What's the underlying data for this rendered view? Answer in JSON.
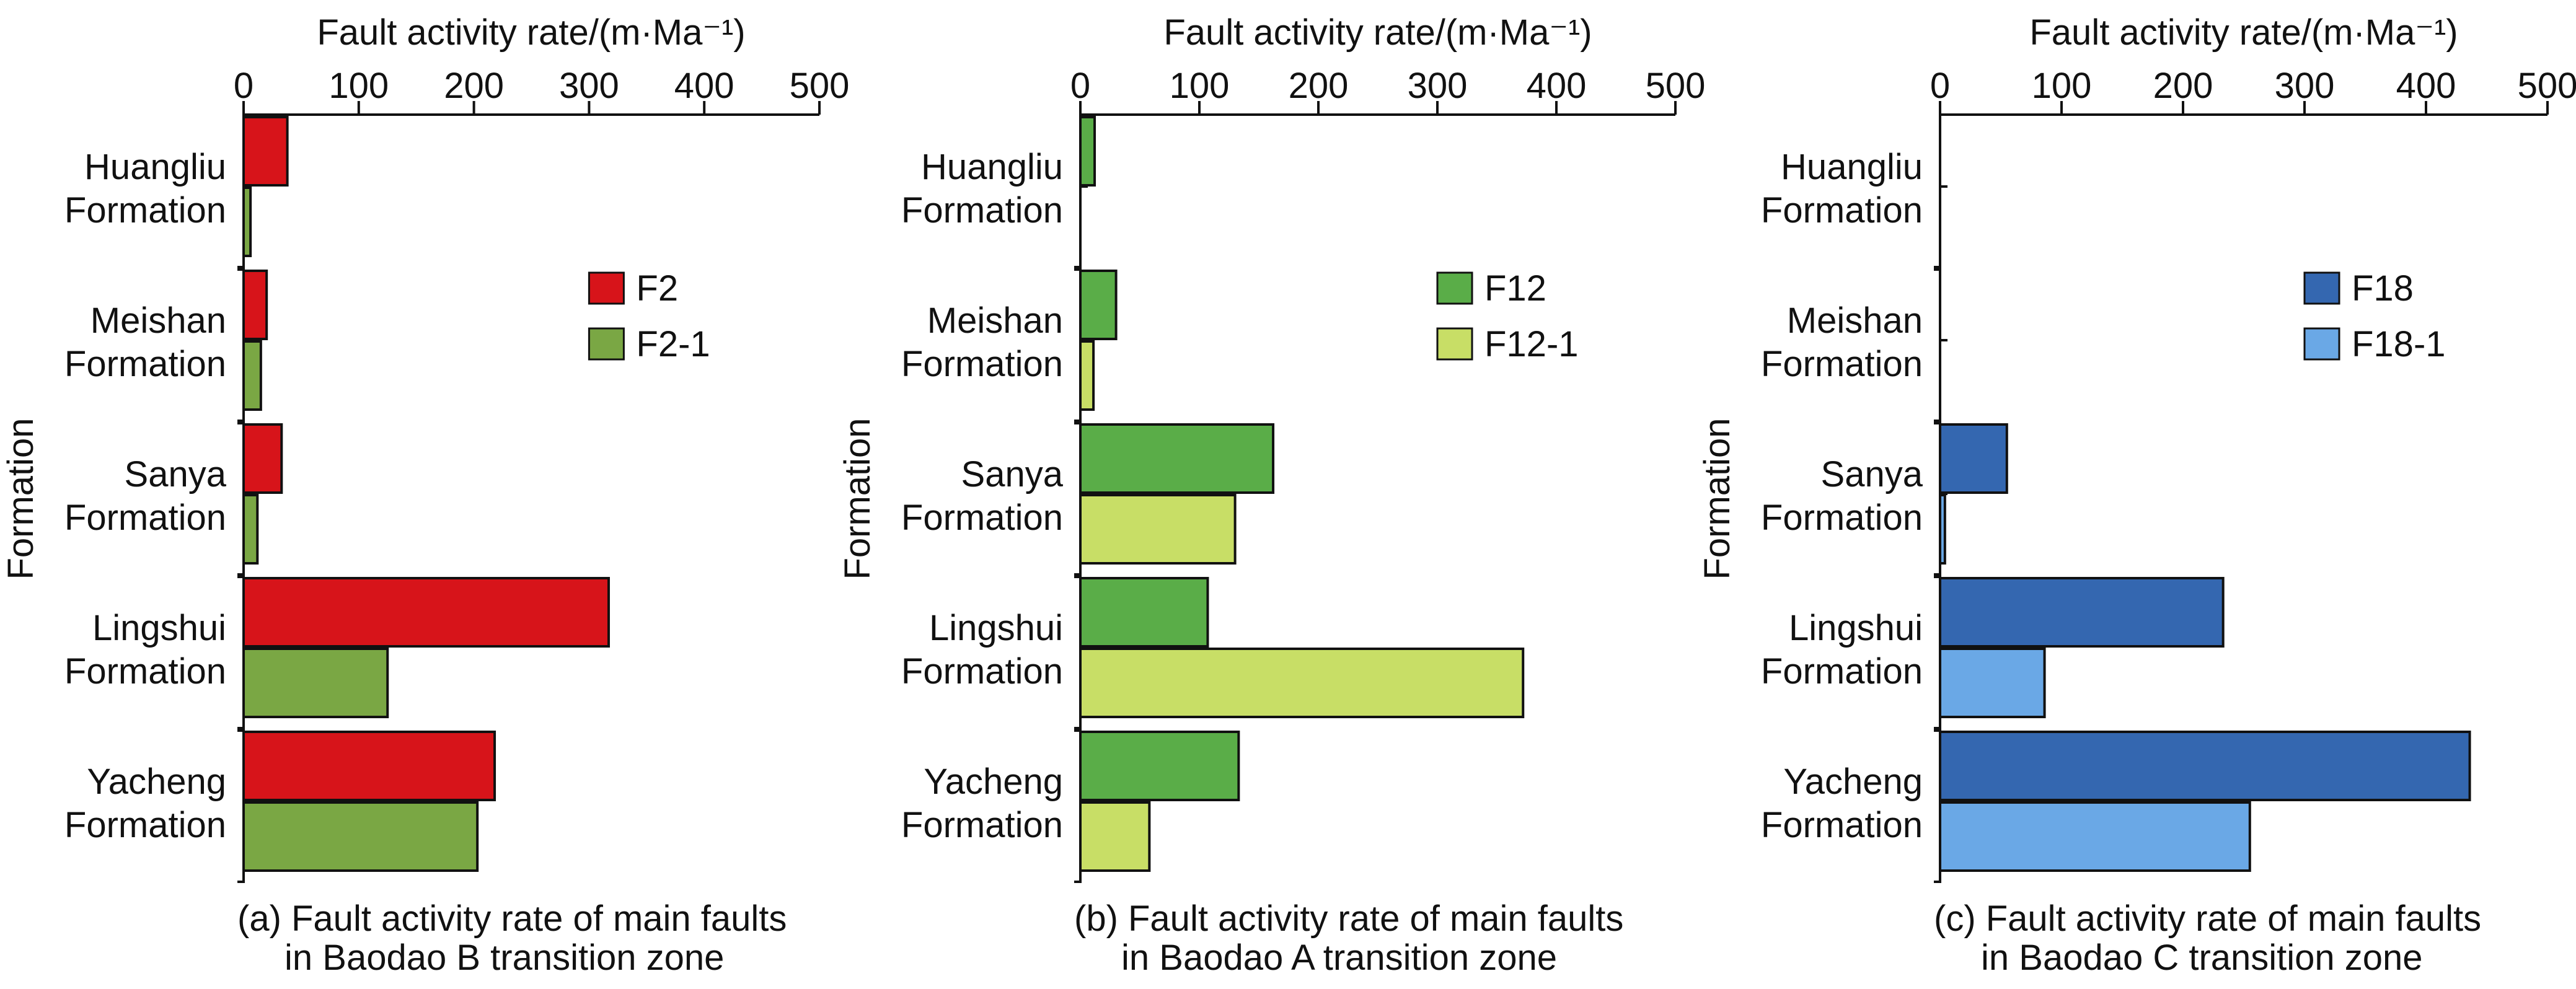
{
  "chart_data": [
    {
      "type": "bar",
      "orientation": "horizontal",
      "title": "",
      "xlabel": "Fault activity rate/(m·Ma⁻¹)",
      "ylabel": "Formation",
      "xlim": [
        0,
        500
      ],
      "xticks": [
        0,
        100,
        200,
        300,
        400,
        500
      ],
      "x_axis_position": "top",
      "categories": [
        [
          "Huangliu",
          "Formation"
        ],
        [
          "Meishan",
          "Formation"
        ],
        [
          "Sanya",
          "Formation"
        ],
        [
          "Lingshui",
          "Formation"
        ],
        [
          "Yacheng",
          "Formation"
        ]
      ],
      "series": [
        {
          "name": "F2",
          "color": "#d7141a",
          "values": [
            38,
            20,
            33,
            317,
            218
          ]
        },
        {
          "name": "F2-1",
          "color": "#7aa744",
          "values": [
            6,
            15,
            12,
            125,
            203
          ]
        }
      ],
      "legend_position": "right",
      "caption": [
        "(a) Fault activity rate of main faults",
        "in Baodao B transition zone"
      ],
      "grid": false
    },
    {
      "type": "bar",
      "orientation": "horizontal",
      "title": "",
      "xlabel": "Fault activity rate/(m·Ma⁻¹)",
      "ylabel": "Formation",
      "xlim": [
        0,
        500
      ],
      "xticks": [
        0,
        100,
        200,
        300,
        400,
        500
      ],
      "x_axis_position": "top",
      "categories": [
        [
          "Huangliu",
          "Formation"
        ],
        [
          "Meishan",
          "Formation"
        ],
        [
          "Sanya",
          "Formation"
        ],
        [
          "Lingshui",
          "Formation"
        ],
        [
          "Yacheng",
          "Formation"
        ]
      ],
      "series": [
        {
          "name": "F12",
          "color": "#5aad48",
          "values": [
            12,
            30,
            162,
            107,
            133
          ]
        },
        {
          "name": "F12-1",
          "color": "#c8de66",
          "values": [
            0,
            11,
            130,
            372,
            58
          ]
        }
      ],
      "legend_position": "right",
      "caption": [
        "(b) Fault activity rate of main faults",
        "in Baodao A transition zone"
      ],
      "grid": false
    },
    {
      "type": "bar",
      "orientation": "horizontal",
      "title": "",
      "xlabel": "Fault activity rate/(m·Ma⁻¹)",
      "ylabel": "Formation",
      "xlim": [
        0,
        500
      ],
      "xticks": [
        0,
        100,
        200,
        300,
        400,
        500
      ],
      "x_axis_position": "top",
      "categories": [
        [
          "Huangliu",
          "Formation"
        ],
        [
          "Meishan",
          "Formation"
        ],
        [
          "Sanya",
          "Formation"
        ],
        [
          "Lingshui",
          "Formation"
        ],
        [
          "Yacheng",
          "Formation"
        ]
      ],
      "series": [
        {
          "name": "F18",
          "color": "#3467b0",
          "values": [
            0,
            0,
            55,
            233,
            436
          ]
        },
        {
          "name": "F18-1",
          "color": "#6aa8e6",
          "values": [
            0,
            0,
            4,
            86,
            255
          ]
        }
      ],
      "legend_position": "right",
      "caption": [
        "(c) Fault activity rate of main faults",
        "in Baodao C transition zone"
      ],
      "grid": false
    }
  ]
}
